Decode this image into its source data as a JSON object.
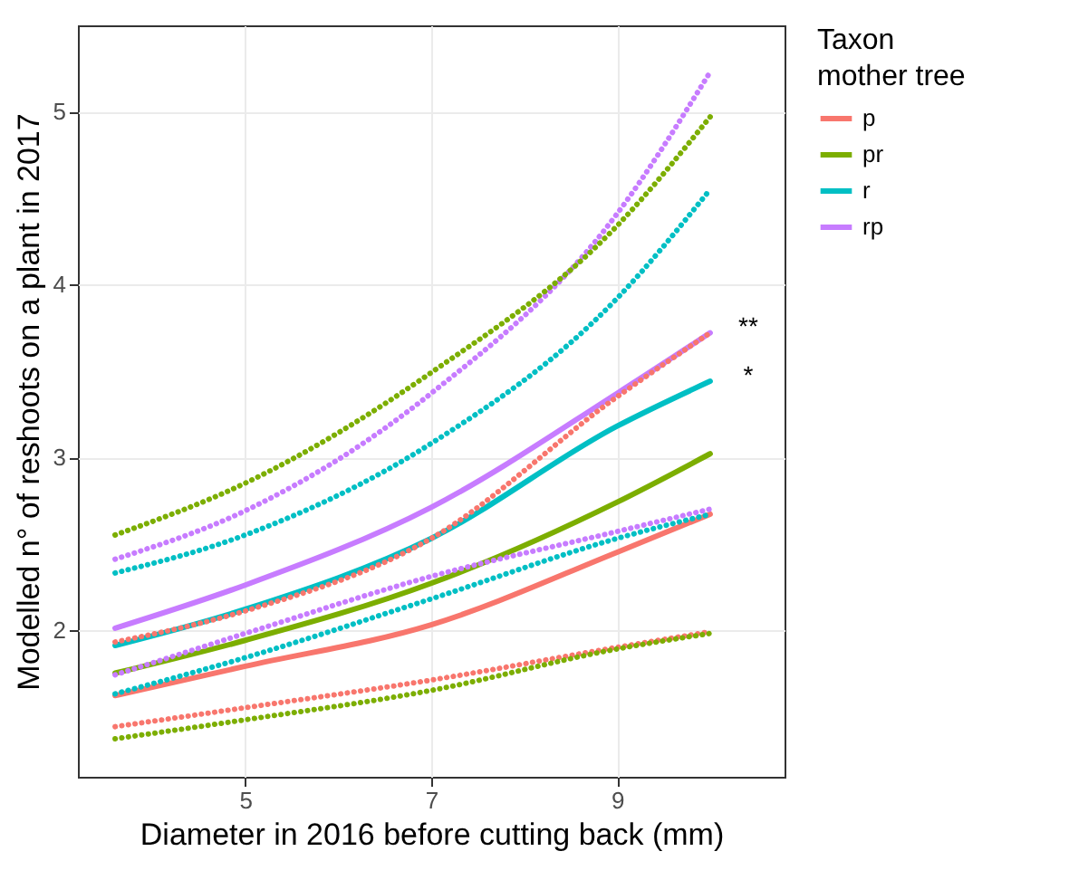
{
  "chart_data": {
    "type": "line",
    "xlabel": "Diameter in 2016 before cutting back (mm)",
    "ylabel": "Modelled n° of reshoots on a plant in 2017",
    "legend_title": "Taxon\nmother tree",
    "x": [
      3.6,
      5,
      7,
      9,
      10
    ],
    "xlim": [
      3.2,
      10.8
    ],
    "xticks": [
      5,
      7,
      9
    ],
    "ylim": [
      1.15,
      5.5
    ],
    "yticks": [
      2,
      3,
      4,
      5
    ],
    "grid": true,
    "legend": "right",
    "series": [
      {
        "name": "p",
        "color": "#f8766d",
        "line_style": "solid",
        "values": [
          1.62,
          1.79,
          2.03,
          2.45,
          2.67
        ]
      },
      {
        "name": "pr",
        "color": "#7cae00",
        "line_style": "solid",
        "values": [
          1.75,
          1.94,
          2.27,
          2.74,
          3.02
        ]
      },
      {
        "name": "r",
        "color": "#00bfc4",
        "line_style": "solid",
        "values": [
          1.91,
          2.12,
          2.53,
          3.18,
          3.44
        ]
      },
      {
        "name": "rp",
        "color": "#c77cff",
        "line_style": "solid",
        "values": [
          2.01,
          2.26,
          2.71,
          3.37,
          3.72
        ]
      },
      {
        "color": "#f8766d",
        "line_style": "dotted",
        "values": [
          1.44,
          1.55,
          1.71,
          1.9,
          1.99
        ]
      },
      {
        "color": "#7cae00",
        "line_style": "dotted",
        "values": [
          1.37,
          1.48,
          1.65,
          1.89,
          1.98
        ]
      },
      {
        "color": "#00bfc4",
        "line_style": "dotted",
        "values": [
          1.63,
          1.84,
          2.18,
          2.53,
          2.67
        ]
      },
      {
        "color": "#c77cff",
        "line_style": "dotted",
        "values": [
          1.74,
          1.98,
          2.31,
          2.57,
          2.7
        ]
      },
      {
        "color": "#f8766d",
        "line_style": "dotted",
        "values": [
          1.93,
          2.11,
          2.53,
          3.35,
          3.72
        ]
      },
      {
        "color": "#00bfc4",
        "line_style": "dotted",
        "values": [
          2.33,
          2.55,
          3.08,
          3.92,
          4.55
        ]
      },
      {
        "color": "#c77cff",
        "line_style": "dotted",
        "values": [
          2.41,
          2.69,
          3.37,
          4.41,
          5.23
        ]
      },
      {
        "color": "#7cae00",
        "line_style": "dotted",
        "values": [
          2.55,
          2.85,
          3.49,
          4.34,
          4.97
        ]
      }
    ],
    "annotations": [
      "**",
      "*"
    ]
  }
}
